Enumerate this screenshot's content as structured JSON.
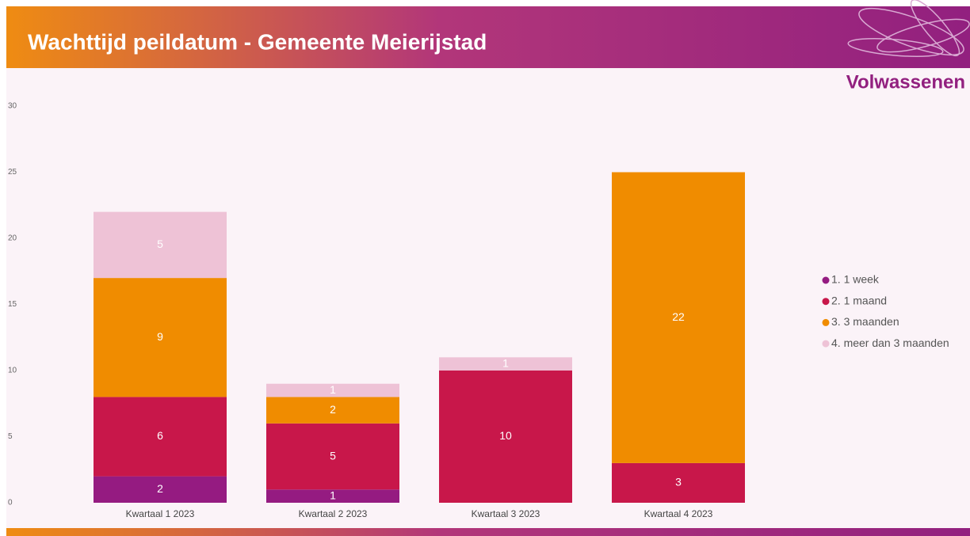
{
  "chart_data": {
    "type": "stacked-bar",
    "title": "Wachttijd peildatum - Gemeente Meierijstad",
    "subtitle": "Volwassenen",
    "categories": [
      "Kwartaal 1 2023",
      "Kwartaal 2 2023",
      "Kwartaal 3 2023",
      "Kwartaal 4 2023"
    ],
    "series": [
      {
        "name": "1. 1 week",
        "color": "#951b81",
        "values": [
          2,
          1,
          null,
          null
        ]
      },
      {
        "name": "2. 1 maand",
        "color": "#c8174a",
        "values": [
          6,
          5,
          10,
          3
        ]
      },
      {
        "name": "3. 3 maanden",
        "color": "#f08c00",
        "values": [
          9,
          2,
          null,
          22
        ]
      },
      {
        "name": "4. meer dan 3 maanden",
        "color": "#eec2d6",
        "values": [
          5,
          1,
          1,
          null
        ]
      }
    ],
    "ylim": [
      0,
      30
    ],
    "yticks": [
      0,
      5,
      10,
      15,
      20,
      25,
      30
    ],
    "legend": "right"
  }
}
